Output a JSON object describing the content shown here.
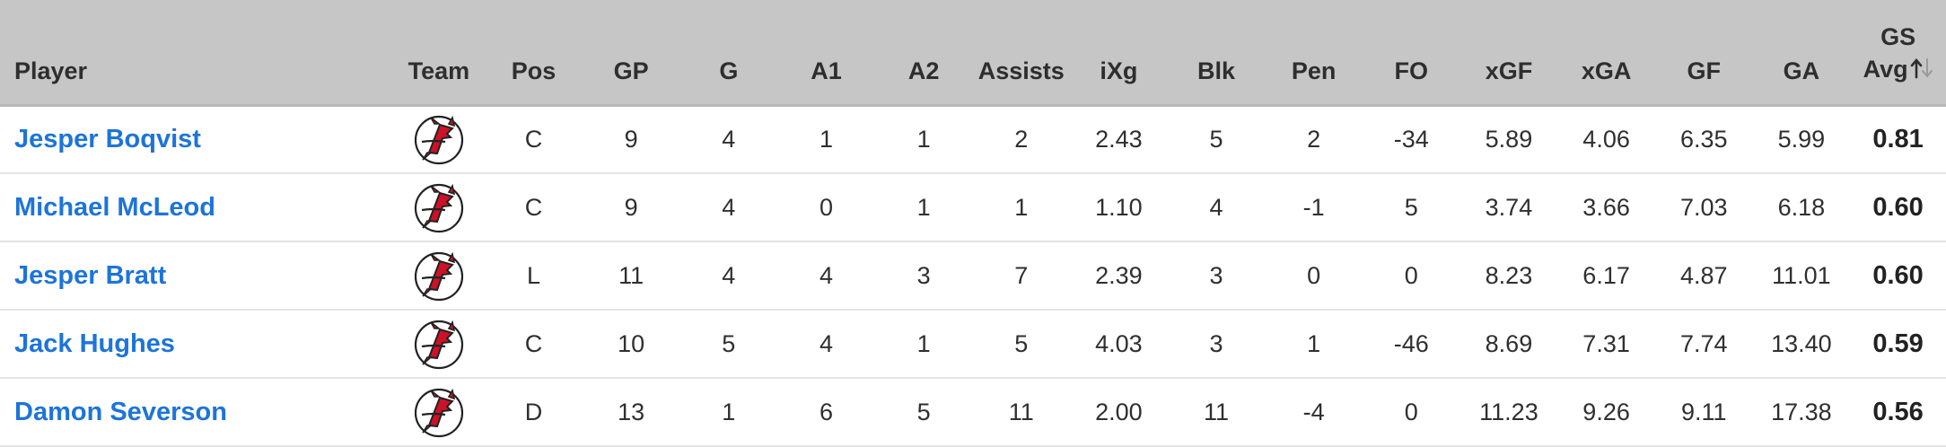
{
  "columns": {
    "player": "Player",
    "team": "Team",
    "pos": "Pos",
    "gp": "GP",
    "g": "G",
    "a1": "A1",
    "a2": "A2",
    "assists": "Assists",
    "ixg": "iXg",
    "blk": "Blk",
    "pen": "Pen",
    "fo": "FO",
    "xgf": "xGF",
    "xga": "xGA",
    "gf": "GF",
    "ga": "GA",
    "gs_line1": "GS",
    "gs_line2": "Avg"
  },
  "sort": {
    "column": "GS Avg",
    "direction": "ascending-highlighted"
  },
  "team_logo_icon": "new-jersey-devils-logo",
  "colors": {
    "link": "#1d74d9",
    "header_bg": "#c6c6c6",
    "logo_red": "#ce1126"
  },
  "rows": [
    {
      "player": "Jesper Boqvist",
      "pos": "C",
      "gp": "9",
      "g": "4",
      "a1": "1",
      "a2": "1",
      "assists": "2",
      "ixg": "2.43",
      "blk": "5",
      "pen": "2",
      "fo": "-34",
      "xgf": "5.89",
      "xga": "4.06",
      "gf": "6.35",
      "ga": "5.99",
      "gs": "0.81"
    },
    {
      "player": "Michael McLeod",
      "pos": "C",
      "gp": "9",
      "g": "4",
      "a1": "0",
      "a2": "1",
      "assists": "1",
      "ixg": "1.10",
      "blk": "4",
      "pen": "-1",
      "fo": "5",
      "xgf": "3.74",
      "xga": "3.66",
      "gf": "7.03",
      "ga": "6.18",
      "gs": "0.60"
    },
    {
      "player": "Jesper Bratt",
      "pos": "L",
      "gp": "11",
      "g": "4",
      "a1": "4",
      "a2": "3",
      "assists": "7",
      "ixg": "2.39",
      "blk": "3",
      "pen": "0",
      "fo": "0",
      "xgf": "8.23",
      "xga": "6.17",
      "gf": "4.87",
      "ga": "11.01",
      "gs": "0.60"
    },
    {
      "player": "Jack Hughes",
      "pos": "C",
      "gp": "10",
      "g": "5",
      "a1": "4",
      "a2": "1",
      "assists": "5",
      "ixg": "4.03",
      "blk": "3",
      "pen": "1",
      "fo": "-46",
      "xgf": "8.69",
      "xga": "7.31",
      "gf": "7.74",
      "ga": "13.40",
      "gs": "0.59"
    },
    {
      "player": "Damon Severson",
      "pos": "D",
      "gp": "13",
      "g": "1",
      "a1": "6",
      "a2": "5",
      "assists": "11",
      "ixg": "2.00",
      "blk": "11",
      "pen": "-4",
      "fo": "0",
      "xgf": "11.23",
      "xga": "9.26",
      "gf": "9.11",
      "ga": "17.38",
      "gs": "0.56"
    }
  ]
}
